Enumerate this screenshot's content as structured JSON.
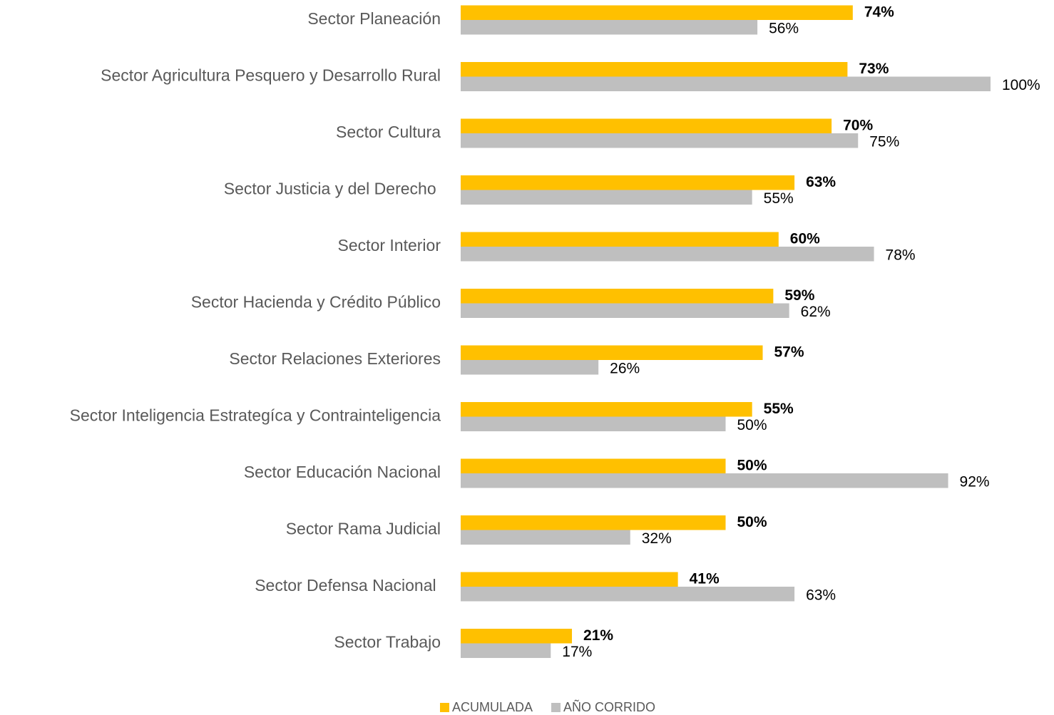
{
  "chart_data": {
    "type": "hbar",
    "categories": [
      "Sector Planeación",
      "Sector Agricultura Pesquero y Desarrollo Rural",
      "Sector Cultura",
      "Sector Justicia y del Derecho ",
      "Sector Interior",
      "Sector Hacienda y Crédito Público",
      "Sector Relaciones Exteriores",
      "Sector Inteligencia Estrategíca y Contrainteligencia",
      "Sector Educación Nacional",
      "Sector Rama Judicial",
      "Sector Defensa Nacional ",
      "Sector Trabajo"
    ],
    "series": [
      {
        "name": "ACUMULADA",
        "color": "#FFC000",
        "values": [
          74,
          73,
          70,
          63,
          60,
          59,
          57,
          55,
          50,
          50,
          41,
          21
        ],
        "value_labels": [
          "74%",
          "73%",
          "70%",
          "63%",
          "60%",
          "59%",
          "57%",
          "55%",
          "50%",
          "50%",
          "41%",
          "21%"
        ]
      },
      {
        "name": "AÑO CORRIDO",
        "color": "#BFBFBF",
        "values": [
          56,
          100,
          75,
          55,
          78,
          62,
          26,
          50,
          92,
          32,
          63,
          17
        ],
        "value_labels": [
          "56%",
          "100%",
          "75%",
          "55%",
          "78%",
          "62%",
          "26%",
          "50%",
          "92%",
          "32%",
          "63%",
          "17%"
        ]
      }
    ],
    "xlim": [
      0,
      100
    ],
    "legend": "bottom"
  }
}
